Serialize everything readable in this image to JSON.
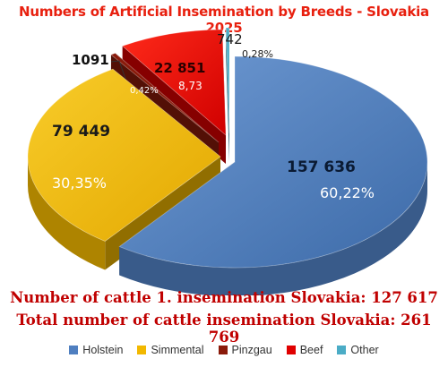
{
  "colors": {
    "title": "#e8200f",
    "stats": "#c00000"
  },
  "chart_data": {
    "type": "pie",
    "title": "Numbers of Artificial Insemination by Breeds - Slovakia 2025",
    "slices": [
      {
        "name": "Holstein",
        "value": 157636,
        "value_label": "157 636",
        "percent_label": "60,22%",
        "color": "#4f7fc0"
      },
      {
        "name": "Simmental",
        "value": 79449,
        "value_label": "79 449",
        "percent_label": "30,35%",
        "color": "#f2b800"
      },
      {
        "name": "Pinzgau",
        "value": 1091,
        "value_label": "1091",
        "percent_label": "0,42%",
        "color": "#8a1a0a"
      },
      {
        "name": "Beef",
        "value": 22851,
        "value_label": "22 851",
        "percent_label": "8,73",
        "color": "#e00000"
      },
      {
        "name": "Other",
        "value": 742,
        "value_label": "742",
        "percent_label": "0,28%",
        "color": "#4bacc6"
      }
    ],
    "legend_position": "bottom"
  },
  "stats": {
    "first": "Number of cattle 1. insemination Slovakia: 127 617",
    "total": "Total number of cattle insemination Slovakia: 261 769"
  }
}
